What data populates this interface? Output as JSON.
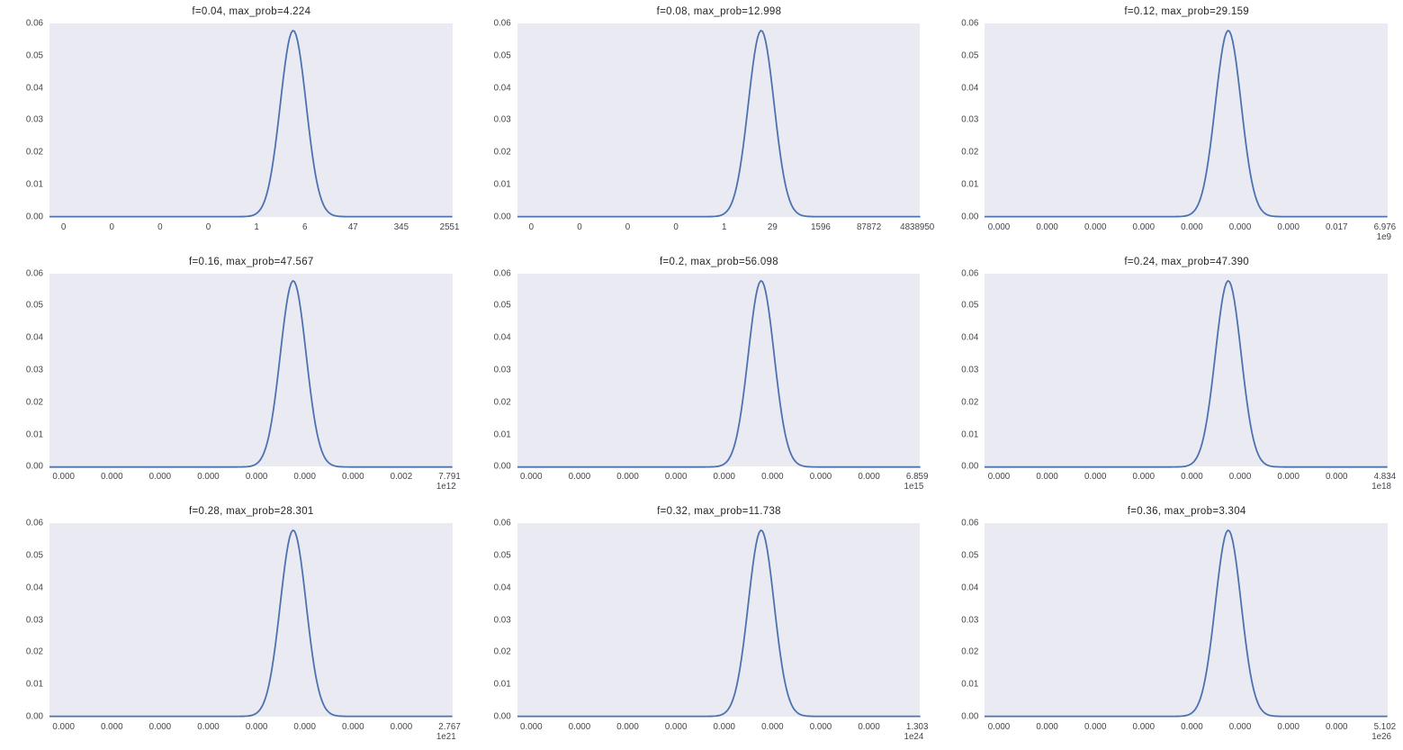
{
  "figure": {
    "background": "#ffffff",
    "axes_background": "#eaeaf2",
    "line_color": "#4c72b0",
    "title_color": "#262629",
    "tick_color": "#45454c"
  },
  "chart_data": [
    {
      "type": "line",
      "title": "f=0.04, max_prob=4.224",
      "f": 0.04,
      "max_prob": 4.224,
      "ylim": [
        0,
        0.06
      ],
      "grid": false,
      "y_tick_labels": [
        "0.00",
        "0.01",
        "0.02",
        "0.03",
        "0.04",
        "0.05",
        "0.06"
      ],
      "x_tick_labels": [
        "0",
        "0",
        "0",
        "0",
        "1",
        "6",
        "47",
        "345",
        "2551"
      ],
      "x_offset": "",
      "curve": {
        "shape": "gaussian",
        "peak_y": 0.0578,
        "center_frac": 0.605,
        "sigma_frac": 0.032
      }
    },
    {
      "type": "line",
      "title": "f=0.08, max_prob=12.998",
      "f": 0.08,
      "max_prob": 12.998,
      "ylim": [
        0,
        0.06
      ],
      "grid": false,
      "y_tick_labels": [
        "0.00",
        "0.01",
        "0.02",
        "0.03",
        "0.04",
        "0.05",
        "0.06"
      ],
      "x_tick_labels": [
        "0",
        "0",
        "0",
        "0",
        "1",
        "29",
        "1596",
        "87872",
        "4838950"
      ],
      "x_offset": "",
      "curve": {
        "shape": "gaussian",
        "peak_y": 0.0578,
        "center_frac": 0.605,
        "sigma_frac": 0.032
      }
    },
    {
      "type": "line",
      "title": "f=0.12, max_prob=29.159",
      "f": 0.12,
      "max_prob": 29.159,
      "ylim": [
        0,
        0.06
      ],
      "grid": false,
      "y_tick_labels": [
        "0.00",
        "0.01",
        "0.02",
        "0.03",
        "0.04",
        "0.05",
        "0.06"
      ],
      "x_tick_labels": [
        "0.000",
        "0.000",
        "0.000",
        "0.000",
        "0.000",
        "0.000",
        "0.000",
        "0.017",
        "6.976"
      ],
      "x_offset": "1e9",
      "curve": {
        "shape": "gaussian",
        "peak_y": 0.0578,
        "center_frac": 0.605,
        "sigma_frac": 0.032
      }
    },
    {
      "type": "line",
      "title": "f=0.16, max_prob=47.567",
      "f": 0.16,
      "max_prob": 47.567,
      "ylim": [
        0,
        0.06
      ],
      "grid": false,
      "y_tick_labels": [
        "0.00",
        "0.01",
        "0.02",
        "0.03",
        "0.04",
        "0.05",
        "0.06"
      ],
      "x_tick_labels": [
        "0.000",
        "0.000",
        "0.000",
        "0.000",
        "0.000",
        "0.000",
        "0.000",
        "0.002",
        "7.791"
      ],
      "x_offset": "1e12",
      "curve": {
        "shape": "gaussian",
        "peak_y": 0.0578,
        "center_frac": 0.605,
        "sigma_frac": 0.032
      }
    },
    {
      "type": "line",
      "title": "f=0.2, max_prob=56.098",
      "f": 0.2,
      "max_prob": 56.098,
      "ylim": [
        0,
        0.06
      ],
      "grid": false,
      "y_tick_labels": [
        "0.00",
        "0.01",
        "0.02",
        "0.03",
        "0.04",
        "0.05",
        "0.06"
      ],
      "x_tick_labels": [
        "0.000",
        "0.000",
        "0.000",
        "0.000",
        "0.000",
        "0.000",
        "0.000",
        "0.000",
        "6.859"
      ],
      "x_offset": "1e15",
      "curve": {
        "shape": "gaussian",
        "peak_y": 0.0578,
        "center_frac": 0.605,
        "sigma_frac": 0.032
      }
    },
    {
      "type": "line",
      "title": "f=0.24, max_prob=47.390",
      "f": 0.24,
      "max_prob": 47.39,
      "ylim": [
        0,
        0.06
      ],
      "grid": false,
      "y_tick_labels": [
        "0.00",
        "0.01",
        "0.02",
        "0.03",
        "0.04",
        "0.05",
        "0.06"
      ],
      "x_tick_labels": [
        "0.000",
        "0.000",
        "0.000",
        "0.000",
        "0.000",
        "0.000",
        "0.000",
        "0.000",
        "4.834"
      ],
      "x_offset": "1e18",
      "curve": {
        "shape": "gaussian",
        "peak_y": 0.0578,
        "center_frac": 0.605,
        "sigma_frac": 0.032
      }
    },
    {
      "type": "line",
      "title": "f=0.28, max_prob=28.301",
      "f": 0.28,
      "max_prob": 28.301,
      "ylim": [
        0,
        0.06
      ],
      "grid": false,
      "y_tick_labels": [
        "0.00",
        "0.01",
        "0.02",
        "0.03",
        "0.04",
        "0.05",
        "0.06"
      ],
      "x_tick_labels": [
        "0.000",
        "0.000",
        "0.000",
        "0.000",
        "0.000",
        "0.000",
        "0.000",
        "0.000",
        "2.767"
      ],
      "x_offset": "1e21",
      "curve": {
        "shape": "gaussian",
        "peak_y": 0.0578,
        "center_frac": 0.605,
        "sigma_frac": 0.032
      }
    },
    {
      "type": "line",
      "title": "f=0.32, max_prob=11.738",
      "f": 0.32,
      "max_prob": 11.738,
      "ylim": [
        0,
        0.06
      ],
      "grid": false,
      "y_tick_labels": [
        "0.00",
        "0.01",
        "0.02",
        "0.03",
        "0.04",
        "0.05",
        "0.06"
      ],
      "x_tick_labels": [
        "0.000",
        "0.000",
        "0.000",
        "0.000",
        "0.000",
        "0.000",
        "0.000",
        "0.000",
        "1.303"
      ],
      "x_offset": "1e24",
      "curve": {
        "shape": "gaussian",
        "peak_y": 0.0578,
        "center_frac": 0.605,
        "sigma_frac": 0.032
      }
    },
    {
      "type": "line",
      "title": "f=0.36, max_prob=3.304",
      "f": 0.36,
      "max_prob": 3.304,
      "ylim": [
        0,
        0.06
      ],
      "grid": false,
      "y_tick_labels": [
        "0.00",
        "0.01",
        "0.02",
        "0.03",
        "0.04",
        "0.05",
        "0.06"
      ],
      "x_tick_labels": [
        "0.000",
        "0.000",
        "0.000",
        "0.000",
        "0.000",
        "0.000",
        "0.000",
        "0.000",
        "5.102"
      ],
      "x_offset": "1e26",
      "curve": {
        "shape": "gaussian",
        "peak_y": 0.0578,
        "center_frac": 0.605,
        "sigma_frac": 0.032
      }
    }
  ]
}
